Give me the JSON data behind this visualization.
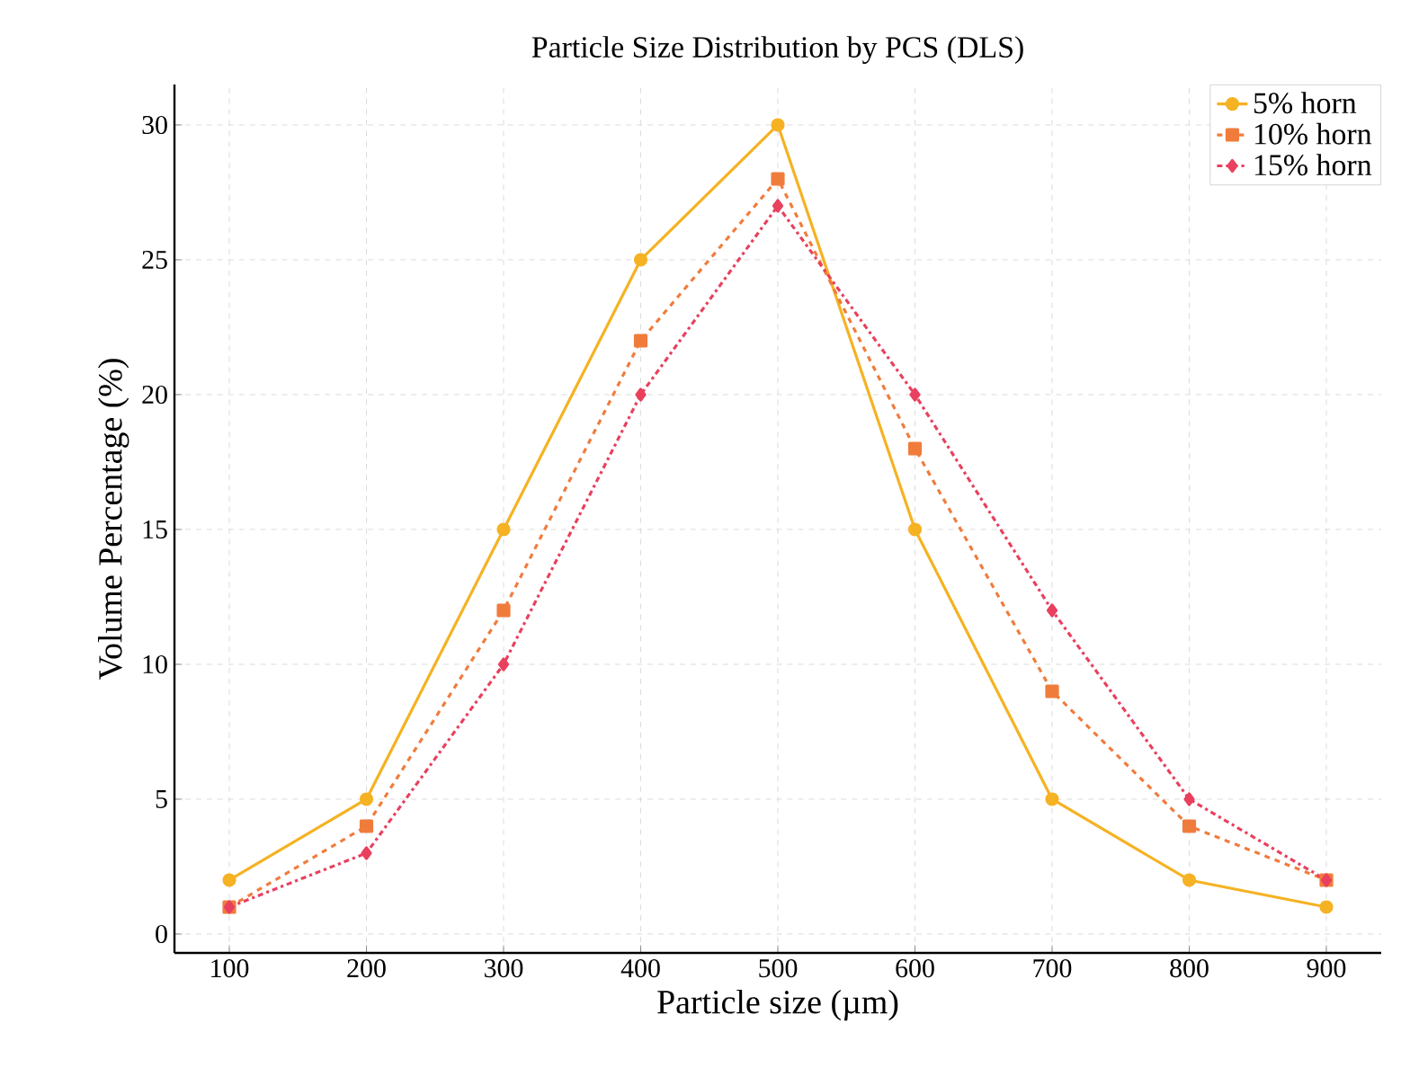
{
  "chart_data": {
    "type": "line",
    "title": "Particle Size Distribution by PCS (DLS)",
    "xlabel": "Particle size (µm)",
    "ylabel": "Volume Percentage (%)",
    "x": [
      100,
      200,
      300,
      400,
      500,
      600,
      700,
      800,
      900
    ],
    "series": [
      {
        "name": "5% horn",
        "color": "#f5b223",
        "marker": "circle",
        "line_style": "solid",
        "values": [
          2,
          5,
          15,
          25,
          30,
          15,
          5,
          2,
          1
        ]
      },
      {
        "name": "10% horn",
        "color": "#f07c3c",
        "marker": "square",
        "line_style": "dashed",
        "values": [
          1,
          4,
          12,
          22,
          28,
          18,
          9,
          4,
          2
        ]
      },
      {
        "name": "15% horn",
        "color": "#e8405e",
        "marker": "diamond",
        "line_style": "dashdot",
        "values": [
          1,
          3,
          10,
          20,
          27,
          20,
          12,
          5,
          2
        ]
      }
    ],
    "xlim": [
      60,
      940
    ],
    "ylim": [
      -0.7,
      31.5
    ],
    "xticks": [
      100,
      200,
      300,
      400,
      500,
      600,
      700,
      800,
      900
    ],
    "yticks": [
      0,
      5,
      10,
      15,
      20,
      25,
      30
    ],
    "grid": true,
    "legend": "top right"
  }
}
